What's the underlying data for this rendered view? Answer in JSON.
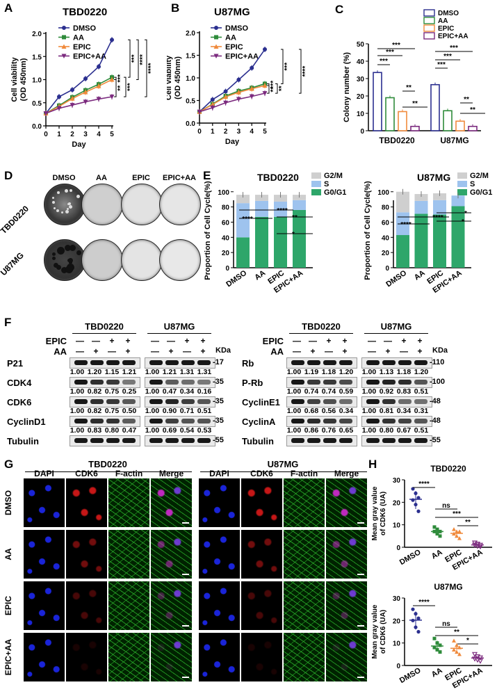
{
  "panels": {
    "A": "A",
    "B": "B",
    "C": "C",
    "D": "D",
    "E": "E",
    "F": "F",
    "G": "G",
    "H": "H"
  },
  "colors": {
    "DMSO": "#2b2f8f",
    "AA": "#2e8b3a",
    "EPIC": "#f08a3c",
    "EPIC+AA": "#7b2a7e",
    "G0G1": "#2ea66a",
    "S": "#9ec3ee",
    "G2M": "#cfcfcf",
    "blue_channel": "#1a24d8",
    "red_channel": "#d01818",
    "green_channel": "#2fbf2f"
  },
  "chart_data": [
    {
      "id": "A",
      "type": "line",
      "title": "TBD0220",
      "xlabel": "Day",
      "ylabel": [
        "Cell viability",
        "(OD 450nm)"
      ],
      "x": [
        0,
        1,
        2,
        3,
        4,
        5
      ],
      "xlim": [
        0,
        5
      ],
      "ylim": [
        0,
        2.0
      ],
      "yticks": [
        "0.0",
        "0.5",
        "1.0",
        "1.5",
        "2.0"
      ],
      "series": [
        {
          "name": "DMSO",
          "values": [
            0.27,
            0.63,
            0.78,
            1.02,
            1.28,
            1.86
          ]
        },
        {
          "name": "AA",
          "values": [
            0.27,
            0.44,
            0.62,
            0.77,
            0.9,
            1.05
          ]
        },
        {
          "name": "EPIC",
          "values": [
            0.27,
            0.42,
            0.59,
            0.73,
            0.86,
            1.0
          ]
        },
        {
          "name": "EPIC+AA",
          "values": [
            0.27,
            0.38,
            0.45,
            0.52,
            0.58,
            0.63
          ]
        }
      ],
      "significance": [
        "***",
        "***",
        "****",
        "****",
        "**",
        "***"
      ]
    },
    {
      "id": "B",
      "type": "line",
      "title": "U87MG",
      "xlabel": "Day",
      "ylabel": [
        "Cell  viability",
        "(OD 450nm)"
      ],
      "x": [
        0,
        1,
        2,
        3,
        4,
        5
      ],
      "xlim": [
        0,
        5
      ],
      "ylim": [
        0,
        2.0
      ],
      "yticks": [
        "0.0",
        "0.5",
        "1.0",
        "1.5",
        "2.0"
      ],
      "series": [
        {
          "name": "DMSO",
          "values": [
            0.25,
            0.52,
            0.7,
            0.96,
            1.22,
            1.63
          ]
        },
        {
          "name": "AA",
          "values": [
            0.25,
            0.42,
            0.6,
            0.71,
            0.78,
            0.87
          ]
        },
        {
          "name": "EPIC",
          "values": [
            0.25,
            0.41,
            0.58,
            0.68,
            0.76,
            0.83
          ]
        },
        {
          "name": "EPIC+AA",
          "values": [
            0.25,
            0.34,
            0.45,
            0.53,
            0.59,
            0.66
          ]
        }
      ],
      "significance": [
        "***",
        "***",
        "****",
        "**",
        "**"
      ]
    },
    {
      "id": "C",
      "type": "bar",
      "ylabel": "Colony number (%)",
      "categories": [
        "TBD0220",
        "U87MG"
      ],
      "ylim": [
        0,
        50
      ],
      "yticks": [
        "0",
        "10",
        "20",
        "30",
        "40",
        "50"
      ],
      "series": [
        {
          "name": "DMSO",
          "values": [
            33.5,
            26.5
          ]
        },
        {
          "name": "AA",
          "values": [
            19,
            11.5
          ]
        },
        {
          "name": "EPIC",
          "values": [
            11,
            5.5
          ]
        },
        {
          "name": "EPIC+AA",
          "values": [
            2.5,
            2.5
          ]
        }
      ],
      "significance": [
        "***",
        "***",
        "***",
        "**",
        "**",
        "***",
        "***",
        "***",
        "**",
        "**"
      ]
    },
    {
      "id": "E1",
      "type": "bar",
      "title": "TBD0220",
      "ylabel": "Proportion of Cell Cycle(%)",
      "categories": [
        "DMSO",
        "AA",
        "EPIC",
        "EPIC+AA"
      ],
      "ylim": [
        0,
        100
      ],
      "yticks": [
        "0",
        "20",
        "40",
        "60",
        "80",
        "100"
      ],
      "stack_labels": [
        "G2/M",
        "S",
        "G0/G1"
      ],
      "series": [
        {
          "name": "G0/G1",
          "values": [
            40,
            67,
            67,
            76
          ]
        },
        {
          "name": "S",
          "values": [
            45,
            21,
            20,
            13
          ]
        },
        {
          "name": "G2/M",
          "values": [
            11,
            8,
            9,
            7
          ]
        }
      ],
      "significance": [
        "****",
        "****",
        "**",
        "*"
      ]
    },
    {
      "id": "E2",
      "type": "bar",
      "title": "U87MG",
      "ylabel": "Proportion of Cell Cycle(%)",
      "categories": [
        "DMSO",
        "AA",
        "EPIC",
        "EPIC+AA"
      ],
      "ylim": [
        0,
        100
      ],
      "yticks": [
        "0",
        "20",
        "40",
        "60",
        "80",
        "100"
      ],
      "stack_labels": [
        "G2/M",
        "S",
        "G0/G1"
      ],
      "series": [
        {
          "name": "G0/G1",
          "values": [
            43,
            71,
            70,
            81
          ]
        },
        {
          "name": "S",
          "values": [
            30,
            17,
            19,
            14
          ]
        },
        {
          "name": "G2/M",
          "values": [
            27,
            9,
            9,
            0
          ]
        }
      ],
      "significance": [
        "****",
        "****",
        "*",
        "*"
      ]
    },
    {
      "id": "H1",
      "type": "scatter",
      "title": "TBD0220",
      "ylabel": [
        "Mean gray value",
        "of CDK6 (UA)"
      ],
      "categories": [
        "DMSO",
        "AA",
        "EPIC",
        "EPIC+AA"
      ],
      "ylim": [
        0,
        30
      ],
      "yticks": [
        "0",
        "10",
        "20",
        "30"
      ],
      "points": [
        [
          26,
          24,
          22,
          21,
          19,
          16
        ],
        [
          9,
          8,
          7,
          7,
          6,
          5
        ],
        [
          8,
          7,
          7,
          6,
          5,
          4
        ],
        [
          2,
          1.5,
          1,
          1,
          0.5,
          0.3
        ]
      ],
      "significance": [
        "****",
        "ns",
        "***",
        "**"
      ]
    },
    {
      "id": "H2",
      "type": "scatter",
      "title": "U87MG",
      "ylabel": [
        "Mean gray value",
        "of CDK6 (UA)"
      ],
      "categories": [
        "DMSO",
        "AA",
        "EPIC",
        "EPIC+AA"
      ],
      "ylim": [
        0,
        30
      ],
      "yticks": [
        "0",
        "10",
        "20",
        "30"
      ],
      "points": [
        [
          25,
          23,
          21,
          20,
          17,
          15
        ],
        [
          12,
          10,
          9,
          8,
          7,
          6
        ],
        [
          11,
          9,
          8,
          7,
          6,
          5
        ],
        [
          5,
          4,
          3.5,
          3,
          2.5,
          2
        ]
      ],
      "significance": [
        "****",
        "ns",
        "**",
        "*"
      ]
    }
  ],
  "legend_line": [
    "DMSO",
    "AA",
    "EPIC",
    "EPIC+AA"
  ],
  "panelD": {
    "columns": [
      "DMSO",
      "AA",
      "EPIC",
      "EPIC+AA"
    ],
    "rows": [
      "TBD0220",
      "U87MG"
    ]
  },
  "panelF": {
    "left": {
      "cells": [
        "TBD0220",
        "U87MG"
      ],
      "treat_rows": [
        {
          "label": "EPIC",
          "marks": [
            "—",
            "—",
            "+",
            "+"
          ]
        },
        {
          "label": "AA",
          "marks": [
            "—",
            "+",
            "—",
            "+"
          ]
        }
      ],
      "kda_label": "KDa",
      "bands": [
        {
          "name": "P21",
          "kda": "17",
          "q1": [
            "1.00",
            "1.20",
            "1.15",
            "1.21"
          ],
          "q2": [
            "1.00",
            "1.21",
            "1.31",
            "1.31"
          ]
        },
        {
          "name": "CDK4",
          "kda": "35",
          "q1": [
            "1.00",
            "0.82",
            "0.75",
            "0.25"
          ],
          "q2": [
            "1.00",
            "0.47",
            "0.34",
            "0.16"
          ]
        },
        {
          "name": "CDK6",
          "kda": "35",
          "q1": [
            "1.00",
            "0.82",
            "0.75",
            "0.50"
          ],
          "q2": [
            "1.00",
            "0.90",
            "0.71",
            "0.51"
          ]
        },
        {
          "name": "CyclinD1",
          "kda": "35",
          "q1": [
            "1.00",
            "0.83",
            "0.80",
            "0.47"
          ],
          "q2": [
            "1.00",
            "0.69",
            "0.54",
            "0.53"
          ]
        },
        {
          "name": "Tubulin",
          "kda": "55",
          "q1": [],
          "q2": []
        }
      ]
    },
    "right": {
      "cells": [
        "TBD0220",
        "U87MG"
      ],
      "treat_rows": [
        {
          "label": "EPIC",
          "marks": [
            "—",
            "—",
            "+",
            "+"
          ]
        },
        {
          "label": "AA",
          "marks": [
            "—",
            "+",
            "—",
            "+"
          ]
        }
      ],
      "kda_label": "KDa",
      "bands": [
        {
          "name": "Rb",
          "kda": "110",
          "q1": [
            "1.00",
            "1.19",
            "1.18",
            "1.20"
          ],
          "q2": [
            "1.00",
            "1.13",
            "1.18",
            "1.20"
          ]
        },
        {
          "name": "P-Rb",
          "kda": "100",
          "q1": [
            "1.00",
            "0.74",
            "0.74",
            "0.59"
          ],
          "q2": [
            "1.00",
            "0.92",
            "0.83",
            "0.51"
          ]
        },
        {
          "name": "CyclinE1",
          "kda": "48",
          "q1": [
            "1.00",
            "0.68",
            "0.56",
            "0.34"
          ],
          "q2": [
            "1.00",
            "0.81",
            "0.34",
            "0.31"
          ]
        },
        {
          "name": "CyclinA",
          "kda": "48",
          "q1": [
            "1.00",
            "0.86",
            "0.76",
            "0.65"
          ],
          "q2": [
            "1.00",
            "0.80",
            "0.67",
            "0.51"
          ]
        },
        {
          "name": "Tubulin",
          "kda": "55",
          "q1": [],
          "q2": []
        }
      ]
    }
  },
  "panelG": {
    "groups": [
      "TBD0220",
      "U87MG"
    ],
    "channels": [
      "DAPI",
      "CDK6",
      "F-actin",
      "Merge"
    ],
    "rows": [
      "DMSO",
      "AA",
      "EPIC",
      "EPIC+AA"
    ]
  }
}
